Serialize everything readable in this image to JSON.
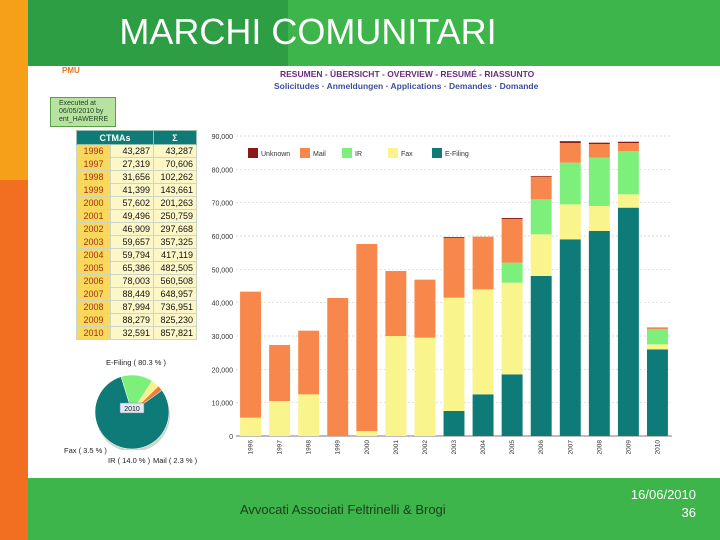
{
  "slide": {
    "title": "MARCHI COMUNITARI",
    "footer_text": "Avvocati Associati Feltrinelli & Brogi",
    "date": "16/06/2010",
    "page_number": "36"
  },
  "header": {
    "logo_text": "PMU",
    "executed_line1": "Executed at",
    "executed_line2": "06/05/2010 by",
    "executed_line3": "ent_HAWERRE",
    "line1": "RESUMEN - ÜBERSICHT - OVERVIEW - RESUMÉ - RIASSUNTO",
    "line2": "Solicitudes · Anmeldungen · Applications · Demandes · Domande"
  },
  "table": {
    "col1": "CTMAs",
    "col2": "Σ",
    "rows": [
      [
        "1996",
        "43,287",
        "43,287"
      ],
      [
        "1997",
        "27,319",
        "70,606"
      ],
      [
        "1998",
        "31,656",
        "102,262"
      ],
      [
        "1999",
        "41,399",
        "143,661"
      ],
      [
        "2000",
        "57,602",
        "201,263"
      ],
      [
        "2001",
        "49,496",
        "250,759"
      ],
      [
        "2002",
        "46,909",
        "297,668"
      ],
      [
        "2003",
        "59,657",
        "357,325"
      ],
      [
        "2004",
        "59,794",
        "417,119"
      ],
      [
        "2005",
        "65,386",
        "482,505"
      ],
      [
        "2006",
        "78,003",
        "560,508"
      ],
      [
        "2007",
        "88,449",
        "648,957"
      ],
      [
        "2008",
        "87,994",
        "736,951"
      ],
      [
        "2009",
        "88,279",
        "825,230"
      ],
      [
        "2010",
        "32,591",
        "857,821"
      ]
    ]
  },
  "pie": {
    "label_efiling": "E-Filing ( 80.3 % )",
    "label_fax": "Fax ( 3.5 % )",
    "label_ir": "IR ( 14.0 % )",
    "label_mail": "Mail ( 2.3 % )",
    "center_label": "2010",
    "slices": [
      {
        "name": "E-Filing",
        "value": 80.3,
        "color": "#0f7b78"
      },
      {
        "name": "IR",
        "value": 14.0,
        "color": "#7df07a"
      },
      {
        "name": "Fax",
        "value": 3.5,
        "color": "#f7f28a"
      },
      {
        "name": "Mail",
        "value": 2.3,
        "color": "#f07a3a"
      }
    ]
  },
  "chart_data": {
    "type": "bar",
    "stacked": true,
    "categories": [
      "1996",
      "1997",
      "1998",
      "1999",
      "2000",
      "2001",
      "2002",
      "2003",
      "2004",
      "2005",
      "2006",
      "2007",
      "2008",
      "2009",
      "2010"
    ],
    "ylim": [
      0,
      90000
    ],
    "yticks": [
      "0",
      "10,000",
      "20,000",
      "30,000",
      "40,000",
      "50,000",
      "60,000",
      "70,000",
      "80,000",
      "90,000"
    ],
    "legend_position": "top-left",
    "grid": true,
    "series": [
      {
        "name": "E-Filing",
        "color": "#0f7b78",
        "values": [
          0,
          0,
          0,
          0,
          0,
          0,
          0,
          7500,
          12500,
          18500,
          48000,
          59000,
          61500,
          68500,
          26000
        ]
      },
      {
        "name": "Fax",
        "color": "#f9f48c",
        "values": [
          5500,
          10500,
          12500,
          0,
          1500,
          30000,
          29500,
          34000,
          31500,
          27500,
          12500,
          10500,
          7500,
          4000,
          1500
        ]
      },
      {
        "name": "IR",
        "color": "#7cf07a",
        "values": [
          0,
          0,
          0,
          0,
          0,
          0,
          0,
          0,
          0,
          6000,
          10500,
          12500,
          14500,
          13000,
          4500
        ]
      },
      {
        "name": "Mail",
        "color": "#f7874a",
        "values": [
          37800,
          16800,
          19100,
          41400,
          56100,
          19500,
          17400,
          17900,
          15800,
          13100,
          6800,
          5900,
          4100,
          2400,
          600
        ]
      },
      {
        "name": "Unknown",
        "color": "#8a1a14",
        "values": [
          0,
          0,
          0,
          0,
          0,
          0,
          0,
          259,
          0,
          286,
          203,
          549,
          394,
          379,
          0
        ]
      }
    ]
  }
}
